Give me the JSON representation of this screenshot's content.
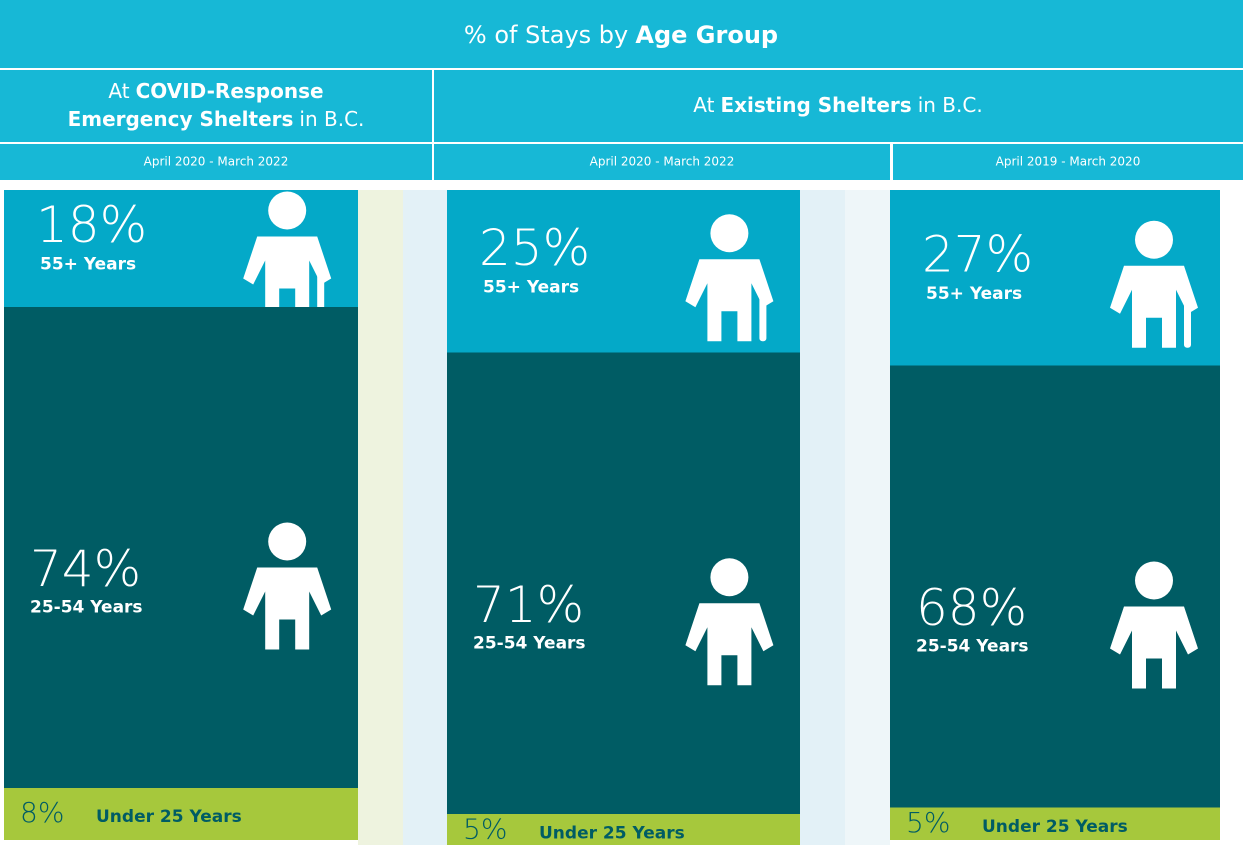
{
  "chart_data": {
    "type": "stacked-column",
    "title": [
      {
        "text": "% of Stays by"
      },
      {
        "text": "Age Group",
        "bold": true
      }
    ],
    "groups": [
      {
        "lines": [
          [
            {
              "text": "At"
            },
            {
              "text": "COVID-Response",
              "bold": true
            }
          ],
          [
            {
              "text": "Emergency Shelters",
              "bold": true
            },
            {
              "text": "in B.C."
            }
          ]
        ]
      },
      {
        "lines": [
          [
            {
              "text": "At"
            },
            {
              "text": "Existing Shelters",
              "bold": true
            },
            {
              "text": "in B.C."
            }
          ]
        ]
      }
    ],
    "categories": [
      "April 2020 - March 2022",
      "April 2020 - March 2022",
      "April 2019 - March 2020"
    ],
    "series": [
      {
        "name": "55+ Years",
        "color": "#04a9c8",
        "values": [
          18,
          25,
          27
        ],
        "value_labels": [
          "18%",
          "25%",
          "27%"
        ]
      },
      {
        "name": "25-54 Years",
        "color": "#005c64",
        "values": [
          74,
          71,
          68
        ],
        "value_labels": [
          "74%",
          "71%",
          "68%"
        ]
      },
      {
        "name": "Under 25 Years",
        "color": "#a6c83c",
        "values": [
          8,
          5,
          5
        ],
        "value_labels": [
          "8%",
          "5%",
          "5%"
        ]
      }
    ],
    "ylim": [
      0,
      100
    ]
  }
}
